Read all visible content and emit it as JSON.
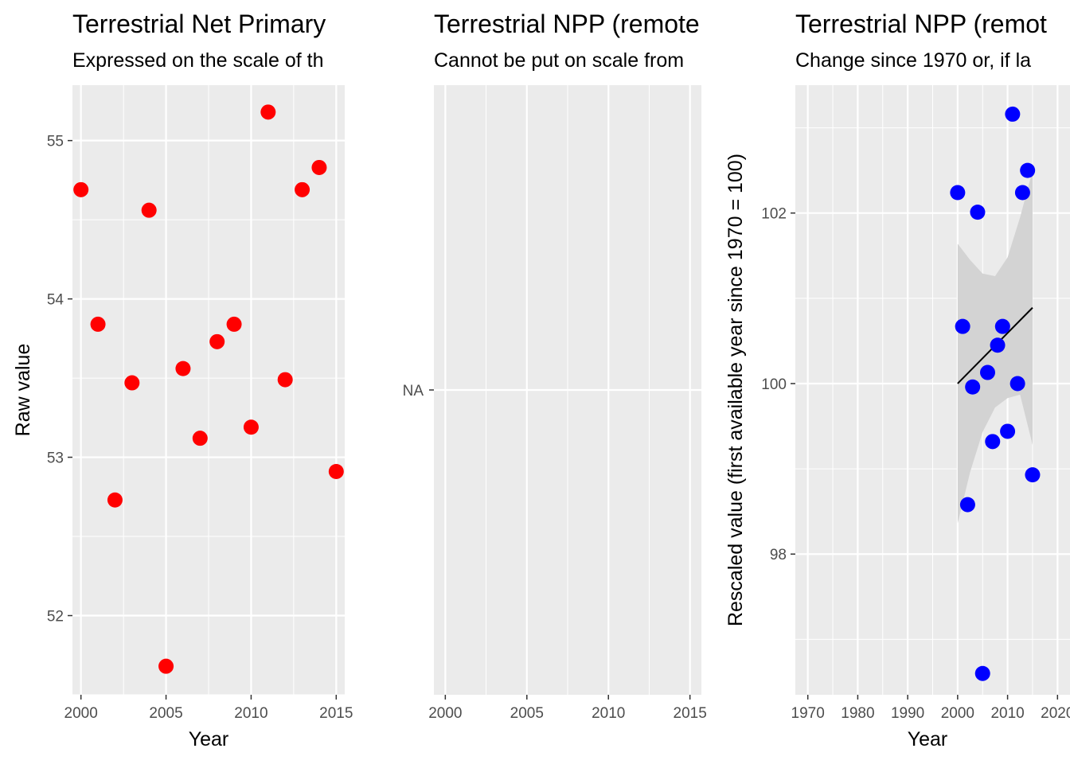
{
  "chart_data": [
    {
      "type": "scatter",
      "title": "Terrestrial Net Primary",
      "subtitle": "Expressed on the scale of th",
      "xlabel": "Year",
      "ylabel": "Raw value",
      "xlim": [
        1999.5,
        2015.5
      ],
      "ylim": [
        51.5,
        55.35
      ],
      "x_ticks": [
        2000,
        2005,
        2010,
        2015
      ],
      "y_ticks": [
        52,
        53,
        54,
        55
      ],
      "grid": true,
      "point_color": "#ff0000",
      "points": [
        {
          "x": 2000,
          "y": 54.69
        },
        {
          "x": 2001,
          "y": 53.84
        },
        {
          "x": 2002,
          "y": 52.73
        },
        {
          "x": 2003,
          "y": 53.47
        },
        {
          "x": 2004,
          "y": 54.56
        },
        {
          "x": 2005,
          "y": 51.68
        },
        {
          "x": 2006,
          "y": 53.56
        },
        {
          "x": 2007,
          "y": 53.12
        },
        {
          "x": 2008,
          "y": 53.73
        },
        {
          "x": 2009,
          "y": 53.84
        },
        {
          "x": 2010,
          "y": 53.19
        },
        {
          "x": 2011,
          "y": 55.18
        },
        {
          "x": 2012,
          "y": 53.49
        },
        {
          "x": 2013,
          "y": 54.69
        },
        {
          "x": 2014,
          "y": 54.83
        },
        {
          "x": 2015,
          "y": 52.91
        }
      ]
    },
    {
      "type": "scatter",
      "title": "Terrestrial NPP (remote",
      "subtitle": "Cannot be put on scale from",
      "xlabel": "",
      "ylabel": "",
      "xlim": [
        1999.3,
        2015.7
      ],
      "x_ticks": [
        2000,
        2005,
        2010,
        2015
      ],
      "y_ticks": [
        "NA"
      ],
      "grid": true,
      "points": []
    },
    {
      "type": "scatter",
      "title": "Terrestrial NPP (remot",
      "subtitle": "Change since 1970 or, if la",
      "xlabel": "Year",
      "ylabel": "Rescaled value (first available year since 1970 = 100)",
      "xlim": [
        1967.5,
        2022.5
      ],
      "ylim": [
        96.35,
        103.5
      ],
      "x_ticks": [
        1970,
        1980,
        1990,
        2000,
        2010,
        2020
      ],
      "y_ticks": [
        98,
        100,
        102
      ],
      "grid": true,
      "point_color": "#0000ff",
      "trend_color": "#000000",
      "band_color": "#d3d3d3",
      "trend": {
        "x": [
          2000,
          2015
        ],
        "y": [
          100.0,
          100.89
        ]
      },
      "band": {
        "x": [
          2000,
          2002.5,
          2005,
          2007.5,
          2010,
          2012.5,
          2015
        ],
        "upper": [
          101.64,
          101.45,
          101.29,
          101.26,
          101.48,
          101.95,
          102.5
        ],
        "lower": [
          98.36,
          98.96,
          99.43,
          99.72,
          99.83,
          99.87,
          99.28
        ]
      },
      "points": [
        {
          "x": 2000,
          "y": 102.24
        },
        {
          "x": 2001,
          "y": 100.67
        },
        {
          "x": 2002,
          "y": 98.58
        },
        {
          "x": 2003,
          "y": 99.96
        },
        {
          "x": 2004,
          "y": 102.01
        },
        {
          "x": 2005,
          "y": 96.6
        },
        {
          "x": 2006,
          "y": 100.13
        },
        {
          "x": 2007,
          "y": 99.32
        },
        {
          "x": 2008,
          "y": 100.45
        },
        {
          "x": 2009,
          "y": 100.67
        },
        {
          "x": 2010,
          "y": 99.44
        },
        {
          "x": 2011,
          "y": 103.16
        },
        {
          "x": 2012,
          "y": 100.0
        },
        {
          "x": 2013,
          "y": 102.24
        },
        {
          "x": 2014,
          "y": 102.5
        },
        {
          "x": 2015,
          "y": 98.93
        }
      ]
    }
  ]
}
